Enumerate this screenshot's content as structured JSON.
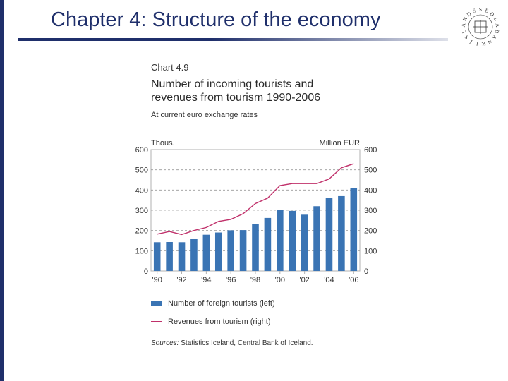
{
  "slide": {
    "title": "Chapter 4: Structure of the economy",
    "seal_letters": [
      "S",
      "E",
      "Ð",
      "L",
      "A",
      "B",
      "A",
      "N",
      "K",
      "I",
      "Í",
      "S",
      "L",
      "A",
      "N",
      "D",
      "S"
    ]
  },
  "chart_data": {
    "type": "bar+line",
    "chart_number": "Chart 4.9",
    "title_lines": [
      "Number of incoming tourists and",
      "revenues from tourism 1990-2006"
    ],
    "subtitle": "At current euro exchange rates",
    "left_unit": "Thous.",
    "right_unit": "Million EUR",
    "ylim_left": [
      0,
      600
    ],
    "ylim_right": [
      0,
      600
    ],
    "yticks": [
      0,
      100,
      200,
      300,
      400,
      500,
      600
    ],
    "years": [
      1990,
      1991,
      1992,
      1993,
      1994,
      1995,
      1996,
      1997,
      1998,
      1999,
      2000,
      2001,
      2002,
      2003,
      2004,
      2005,
      2006
    ],
    "x_tick_labels": [
      "'90",
      "'92",
      "'94",
      "'96",
      "'98",
      "'00",
      "'02",
      "'04",
      "'06"
    ],
    "series": [
      {
        "name": "Number of foreign tourists (left)",
        "type": "bar",
        "axis": "left",
        "color": "#3a74b4",
        "values": [
          142,
          143,
          142,
          157,
          179,
          190,
          201,
          202,
          232,
          262,
          302,
          297,
          278,
          320,
          361,
          370,
          410
        ]
      },
      {
        "name": "Revenues from tourism (right)",
        "type": "line",
        "axis": "right",
        "color": "#c0306a",
        "values": [
          182,
          195,
          180,
          200,
          215,
          245,
          255,
          283,
          333,
          360,
          422,
          432,
          432,
          432,
          455,
          510,
          530
        ]
      }
    ],
    "grid": "dashed horizontal",
    "legend_position": "bottom"
  },
  "sources": {
    "label": "Sources:",
    "text": "Statistics Iceland, Central Bank of Iceland."
  }
}
